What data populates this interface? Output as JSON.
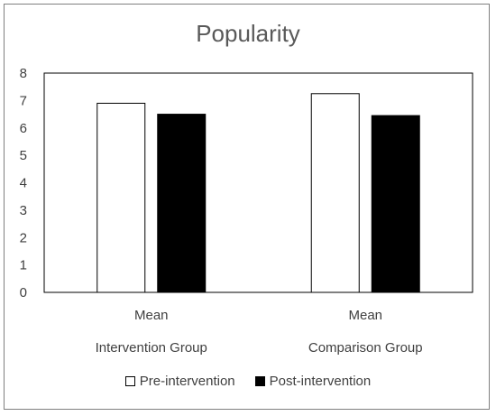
{
  "chart_data": {
    "type": "bar",
    "title": "Popularity",
    "xlabel": "",
    "ylabel": "",
    "ylim": [
      0,
      8
    ],
    "yticks": [
      0,
      1,
      2,
      3,
      4,
      5,
      6,
      7,
      8
    ],
    "categories": [
      {
        "line1": "Mean",
        "line2": "Intervention Group"
      },
      {
        "line1": "Mean",
        "line2": "Comparison Group"
      }
    ],
    "series": [
      {
        "name": "Pre-intervention",
        "values": [
          6.9,
          7.25
        ],
        "fill": "#ffffff",
        "stroke": "#000000"
      },
      {
        "name": "Post-intervention",
        "values": [
          6.5,
          6.45
        ],
        "fill": "#000000",
        "stroke": "#000000"
      }
    ],
    "grid": false,
    "legend_position": "bottom"
  }
}
